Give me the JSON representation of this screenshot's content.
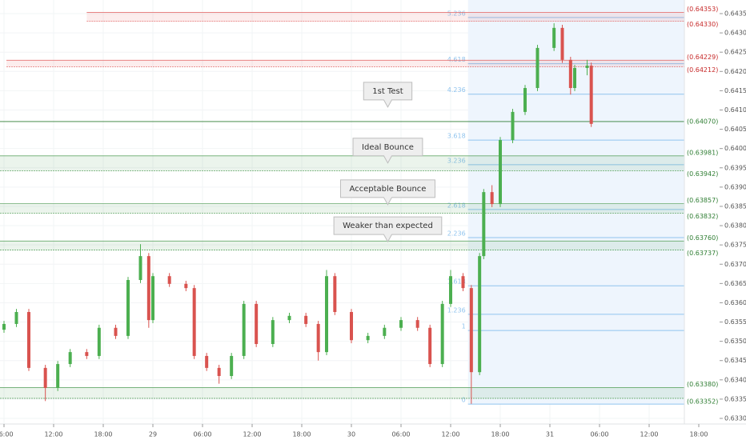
{
  "chart_data": {
    "type": "candlestick",
    "up_color": "#4caf50",
    "down_color": "#d9534f",
    "grid": true,
    "xlim": [
      -0.484,
      89.71
    ],
    "xticks": [
      {
        "value": 0,
        "label": "06:00"
      },
      {
        "value": 6,
        "label": "12:00"
      },
      {
        "value": 12,
        "label": "18:00"
      },
      {
        "value": 18,
        "label": "29"
      },
      {
        "value": 24,
        "label": "06:00"
      },
      {
        "value": 30,
        "label": "12:00"
      },
      {
        "value": 36,
        "label": "18:00"
      },
      {
        "value": 42,
        "label": "30"
      },
      {
        "value": 48,
        "label": "06:00"
      },
      {
        "value": 54,
        "label": "12:00"
      },
      {
        "value": 60,
        "label": "18:00"
      },
      {
        "value": 66,
        "label": "31"
      },
      {
        "value": 72,
        "label": "06:00"
      },
      {
        "value": 78,
        "label": "12:00"
      },
      {
        "value": 84,
        "label": "18:00"
      }
    ],
    "ylim": [
      0.632855,
      0.643853
    ],
    "yticks": [
      {
        "value": 0.633,
        "label": "0.63300"
      },
      {
        "value": 0.6335,
        "label": "0.63350"
      },
      {
        "value": 0.634,
        "label": "0.63400"
      },
      {
        "value": 0.6345,
        "label": "0.63450"
      },
      {
        "value": 0.635,
        "label": "0.63500"
      },
      {
        "value": 0.6355,
        "label": "0.63550"
      },
      {
        "value": 0.636,
        "label": "0.63600"
      },
      {
        "value": 0.6365,
        "label": "0.63650"
      },
      {
        "value": 0.637,
        "label": "0.63700"
      },
      {
        "value": 0.6375,
        "label": "0.63750"
      },
      {
        "value": 0.638,
        "label": "0.63800"
      },
      {
        "value": 0.6385,
        "label": "0.63850"
      },
      {
        "value": 0.639,
        "label": "0.63900"
      },
      {
        "value": 0.6395,
        "label": "0.63950"
      },
      {
        "value": 0.64,
        "label": "0.64000"
      },
      {
        "value": 0.6405,
        "label": "0.64050"
      },
      {
        "value": 0.641,
        "label": "0.64100"
      },
      {
        "value": 0.6415,
        "label": "0.64150"
      },
      {
        "value": 0.642,
        "label": "0.64200"
      },
      {
        "value": 0.6425,
        "label": "0.64250"
      },
      {
        "value": 0.643,
        "label": "0.64300"
      },
      {
        "value": 0.6435,
        "label": "0.64350"
      }
    ],
    "x": [
      0,
      1.5,
      3,
      5,
      6.5,
      8,
      10,
      11.5,
      13.5,
      15,
      16.5,
      17.5,
      18,
      20,
      22,
      23,
      24.5,
      26,
      27.5,
      29,
      30.5,
      32.5,
      34.5,
      36.5,
      38,
      39,
      40,
      42,
      44,
      46,
      48,
      50,
      51.5,
      53,
      54,
      55.5,
      56.5,
      57.5,
      58,
      59,
      60,
      61.5,
      63,
      64.5,
      66.5,
      67.5,
      68.5,
      69,
      70.5,
      71
    ],
    "open": [
      0.6353,
      0.63545,
      0.63576,
      0.63431,
      0.63379,
      0.63441,
      0.63472,
      0.63462,
      0.63535,
      0.63514,
      0.63659,
      0.63721,
      0.63555,
      0.63669,
      0.63649,
      0.63638,
      0.63462,
      0.63431,
      0.6341,
      0.63462,
      0.63597,
      0.63493,
      0.63555,
      0.63566,
      0.63545,
      0.63472,
      0.63669,
      0.63576,
      0.63503,
      0.63514,
      0.63535,
      0.63555,
      0.63535,
      0.63441,
      0.63597,
      0.63669,
      0.63638,
      0.6342,
      0.63721,
      0.63887,
      0.63856,
      0.64022,
      0.64095,
      0.64157,
      0.64261,
      0.64313,
      0.6423,
      0.64157,
      0.64209,
      0.64215
    ],
    "high": [
      0.63553,
      0.63584,
      0.63584,
      0.63439,
      0.63449,
      0.6348,
      0.6348,
      0.63543,
      0.63543,
      0.63667,
      0.63752,
      0.63729,
      0.63677,
      0.63677,
      0.63657,
      0.63646,
      0.6347,
      0.63439,
      0.6347,
      0.63605,
      0.63605,
      0.63563,
      0.63574,
      0.63574,
      0.63553,
      0.63685,
      0.63677,
      0.63584,
      0.63522,
      0.63543,
      0.63563,
      0.63563,
      0.63543,
      0.63605,
      0.63685,
      0.63677,
      0.63646,
      0.63729,
      0.63895,
      0.63905,
      0.6403,
      0.64103,
      0.64165,
      0.64269,
      0.64325,
      0.64321,
      0.64238,
      0.64217,
      0.6423,
      0.64223
    ],
    "low": [
      0.63522,
      0.63537,
      0.63423,
      0.63345,
      0.63371,
      0.63433,
      0.63454,
      0.63454,
      0.63506,
      0.63506,
      0.63651,
      0.63535,
      0.63547,
      0.63641,
      0.6363,
      0.63454,
      0.63423,
      0.6339,
      0.63402,
      0.63454,
      0.63485,
      0.63485,
      0.63547,
      0.63537,
      0.6345,
      0.63464,
      0.63568,
      0.63495,
      0.63495,
      0.63506,
      0.63527,
      0.63527,
      0.63433,
      0.63433,
      0.63589,
      0.6363,
      0.63338,
      0.63412,
      0.63713,
      0.63848,
      0.63848,
      0.64014,
      0.64087,
      0.64149,
      0.64253,
      0.64222,
      0.6414,
      0.64149,
      0.6419,
      0.64056
    ],
    "close": [
      0.63545,
      0.63576,
      0.63431,
      0.63379,
      0.63441,
      0.63472,
      0.63462,
      0.63535,
      0.63514,
      0.63659,
      0.63721,
      0.63555,
      0.63669,
      0.63649,
      0.63638,
      0.63462,
      0.63431,
      0.6341,
      0.63462,
      0.63597,
      0.63493,
      0.63555,
      0.63566,
      0.63545,
      0.63472,
      0.63669,
      0.63576,
      0.63503,
      0.63514,
      0.63535,
      0.63555,
      0.63535,
      0.63441,
      0.63597,
      0.63669,
      0.63638,
      0.6342,
      0.63721,
      0.63887,
      0.63856,
      0.64022,
      0.64095,
      0.64157,
      0.64261,
      0.64313,
      0.6423,
      0.64157,
      0.64209,
      0.64215,
      0.64064
    ],
    "zones": [
      {
        "x_start": 10,
        "color": "#e57373",
        "high": {
          "value": 0.64353,
          "label": "(0.64353)"
        },
        "low": {
          "value": 0.6433,
          "label": "(0.64330)"
        }
      },
      {
        "x_start": 0.29,
        "color": "#e57373",
        "high": {
          "value": 0.64229,
          "label": "(0.64229)"
        },
        "low": {
          "value": 0.64212,
          "label": "(0.64212)"
        }
      },
      {
        "color": "#66a96b",
        "high": {
          "value": 0.63981,
          "label": "(0.63981)"
        },
        "low": {
          "value": 0.63942,
          "label": "(0.63942)"
        }
      },
      {
        "color": "#66a96b",
        "high": {
          "value": 0.63857,
          "label": "(0.63857)"
        },
        "low": {
          "value": 0.63832,
          "label": "(0.63832)"
        }
      },
      {
        "color": "#66a96b",
        "high": {
          "value": 0.6376,
          "label": "(0.63760)"
        },
        "low": {
          "value": 0.63737,
          "label": "(0.63737)"
        }
      },
      {
        "color": "#66a96b",
        "high": {
          "value": 0.6338,
          "label": "(0.63380)"
        },
        "low": {
          "value": 0.63352,
          "label": "(0.63352)"
        }
      }
    ],
    "lines": [
      {
        "value": 0.6407,
        "label": "(0.64070)",
        "color": "#2e7d32"
      }
    ],
    "fib": {
      "start": 56.1,
      "color": "#90c4ee",
      "levels": [
        {
          "ratio": 0,
          "price": 0.63337
        },
        {
          "ratio": 1,
          "price": 0.63528
        },
        {
          "ratio": 1.236,
          "price": 0.6357
        },
        {
          "ratio": 1.618,
          "price": 0.63644
        },
        {
          "ratio": 2.236,
          "price": 0.63769
        },
        {
          "ratio": 2.618,
          "price": 0.63842
        },
        {
          "ratio": 3.236,
          "price": 0.63958
        },
        {
          "ratio": 3.618,
          "price": 0.64022
        },
        {
          "ratio": 4.236,
          "price": 0.64141
        },
        {
          "ratio": 4.618,
          "price": 0.6422
        },
        {
          "ratio": 5.236,
          "price": 0.6434
        }
      ]
    },
    "callouts": [
      {
        "text": "1st Test",
        "x": 46.4,
        "y": 0.64095
      },
      {
        "text": "Ideal Bounce",
        "x": 46.4,
        "y": 0.6395
      },
      {
        "text": "Acceptable Bounce",
        "x": 46.4,
        "y": 0.63842
      },
      {
        "text": "Weaker than expected",
        "x": 46.4,
        "y": 0.63746
      }
    ]
  }
}
